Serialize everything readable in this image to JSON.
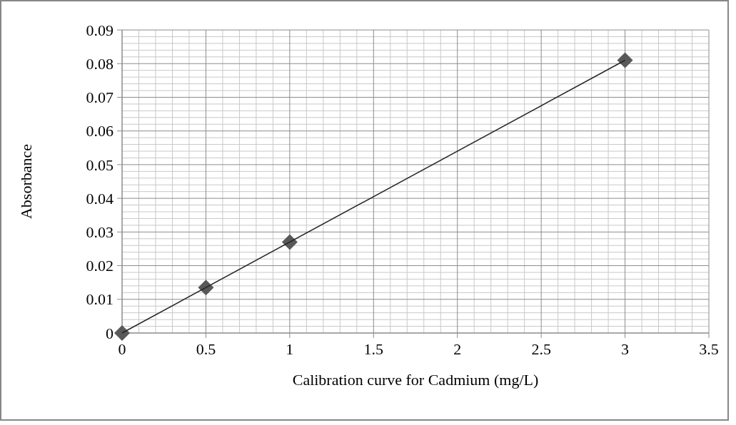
{
  "chart_data": {
    "type": "scatter",
    "xlabel": "Calibration curve for Cadmium (mg/L)",
    "ylabel": "Absorbance",
    "x": [
      0,
      0.5,
      1,
      3
    ],
    "series": [
      {
        "color": "#595959",
        "marker": "diamond",
        "values": [
          0,
          0.0135,
          0.027,
          0.081
        ]
      },
      {
        "type": "line",
        "color": "#262626",
        "marker": "none",
        "x": [
          0,
          3
        ],
        "values": [
          0,
          0.081
        ]
      }
    ],
    "xlim": [
      0,
      3.5
    ],
    "xticks": [
      0,
      0.5,
      1,
      1.5,
      2,
      2.5,
      3,
      3.5
    ],
    "ylim": [
      0,
      0.09
    ],
    "yticks": [
      0,
      0.01,
      0.02,
      0.03,
      0.04,
      0.05,
      0.06,
      0.07,
      0.08,
      0.09
    ],
    "grid": true
  }
}
